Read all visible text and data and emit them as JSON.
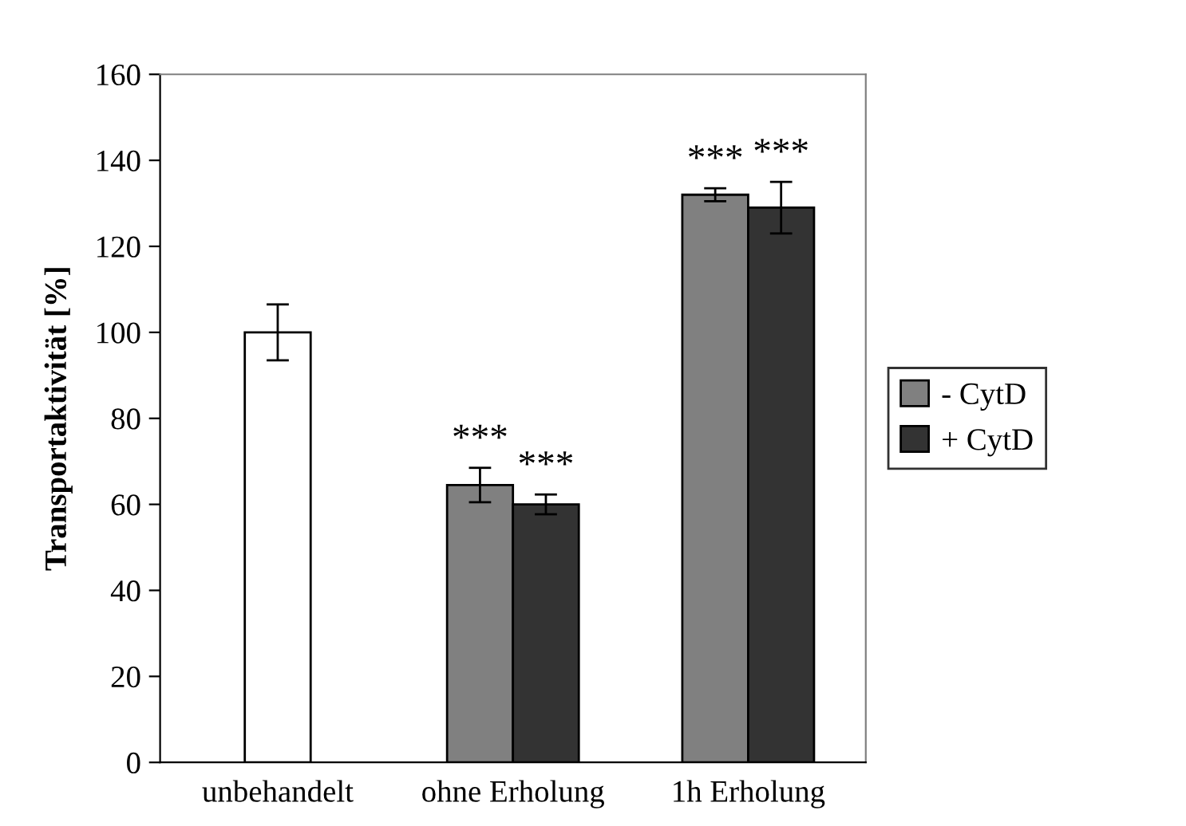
{
  "chart_data": {
    "type": "bar",
    "ylabel": "Transportaktivität [%]",
    "categories": [
      "unbehandelt",
      "ohne Erholung",
      "1h Erholung"
    ],
    "series": [
      {
        "color": "#ffffff",
        "values": [
          100,
          null,
          null
        ],
        "errors": [
          6.5,
          null,
          null
        ]
      },
      {
        "name": "- CytD",
        "color": "#808080",
        "values": [
          null,
          64.5,
          132
        ],
        "errors": [
          null,
          4,
          1.5
        ],
        "value_labels": [
          null,
          "***",
          "***"
        ]
      },
      {
        "name": "+ CytD",
        "color": "#333333",
        "values": [
          null,
          60,
          129
        ],
        "errors": [
          null,
          2.3,
          6
        ],
        "value_labels": [
          null,
          "***",
          "***"
        ]
      }
    ],
    "ylim": [
      0,
      160
    ],
    "yticks": [
      0,
      20,
      40,
      60,
      80,
      100,
      120,
      140,
      160
    ],
    "grid": false,
    "legend": "right"
  }
}
